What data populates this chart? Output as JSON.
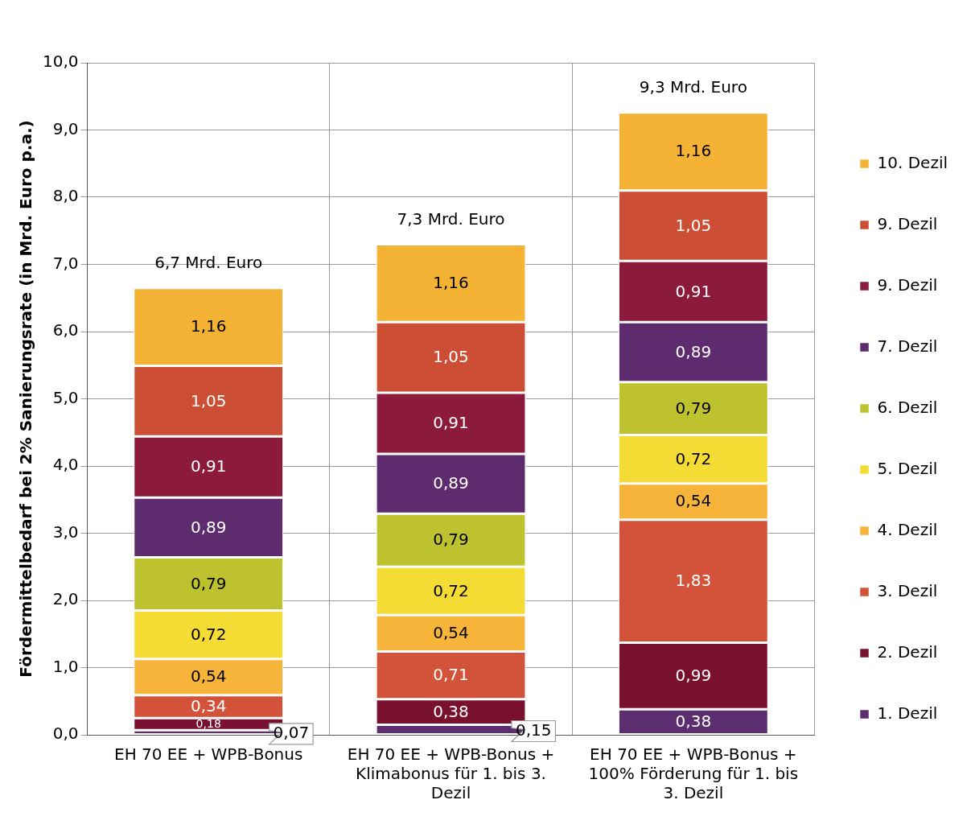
{
  "chart_data": {
    "type": "bar",
    "stacked": true,
    "ylabel": "Fördermittelbedarf bei 2% Sanierungsrate (in Mrd. Euro p.a.)",
    "categories": [
      "EH 70 EE + WPB-Bonus",
      "EH 70 EE + WPB-Bonus + Klimabonus für 1. bis 3. Dezil",
      "EH 70 EE + WPB-Bonus + 100% Förderung für 1. bis 3. Dezil"
    ],
    "series": [
      {
        "name": "1. Dezil",
        "color": "#5c2e6f",
        "values": [
          0.07,
          0.15,
          0.38
        ],
        "value_labels": [
          "0,07",
          "0,15",
          "0,38"
        ]
      },
      {
        "name": "2. Dezil",
        "color": "#7a1030",
        "values": [
          0.18,
          0.38,
          0.99
        ],
        "value_labels": [
          "0,18",
          "0,38",
          "0,99"
        ]
      },
      {
        "name": "3. Dezil",
        "color": "#d2533a",
        "values": [
          0.34,
          0.71,
          1.83
        ],
        "value_labels": [
          "0,34",
          "0,71",
          "1,83"
        ]
      },
      {
        "name": "4. Dezil",
        "color": "#f6b53a",
        "values": [
          0.54,
          0.54,
          0.54
        ],
        "value_labels": [
          "0,54",
          "0,54",
          "0,54"
        ]
      },
      {
        "name": "5. Dezil",
        "color": "#f4dc35",
        "values": [
          0.72,
          0.72,
          0.72
        ],
        "value_labels": [
          "0,72",
          "0,72",
          "0,72"
        ]
      },
      {
        "name": "6. Dezil",
        "color": "#bfc22f",
        "values": [
          0.79,
          0.79,
          0.79
        ],
        "value_labels": [
          "0,79",
          "0,79",
          "0,79"
        ]
      },
      {
        "name": "7. Dezil",
        "color": "#5e2b6e",
        "values": [
          0.89,
          0.89,
          0.89
        ],
        "value_labels": [
          "0,89",
          "0,89",
          "0,89"
        ]
      },
      {
        "name": "9. Dezil",
        "color": "#8b1a3c",
        "values": [
          0.91,
          0.91,
          0.91
        ],
        "value_labels": [
          "0,91",
          "0,91",
          "0,91"
        ]
      },
      {
        "name": "9. Dezil",
        "color": "#cc4e35",
        "values": [
          1.05,
          1.05,
          1.05
        ],
        "value_labels": [
          "1,05",
          "1,05",
          "1,05"
        ]
      },
      {
        "name": "10. Dezil",
        "color": "#f5b335",
        "values": [
          1.16,
          1.16,
          1.16
        ],
        "value_labels": [
          "1,16",
          "1,16",
          "1,16"
        ]
      }
    ],
    "totals": [
      "6,7 Mrd. Euro",
      "7,3 Mrd. Euro",
      "9,3 Mrd. Euro"
    ],
    "ylim": [
      0,
      10
    ],
    "yticks": [
      {
        "value": 0,
        "label": "0,0"
      },
      {
        "value": 1,
        "label": "1,0"
      },
      {
        "value": 2,
        "label": "2,0"
      },
      {
        "value": 3,
        "label": "3,0"
      },
      {
        "value": 4,
        "label": "4,0"
      },
      {
        "value": 5,
        "label": "5,0"
      },
      {
        "value": 6,
        "label": "6,0"
      },
      {
        "value": 7,
        "label": "7,0"
      },
      {
        "value": 8,
        "label": "8,0"
      },
      {
        "value": 9,
        "label": "9,0"
      },
      {
        "value": 10,
        "label": "10,0"
      }
    ],
    "grid": true,
    "legend": "right"
  }
}
